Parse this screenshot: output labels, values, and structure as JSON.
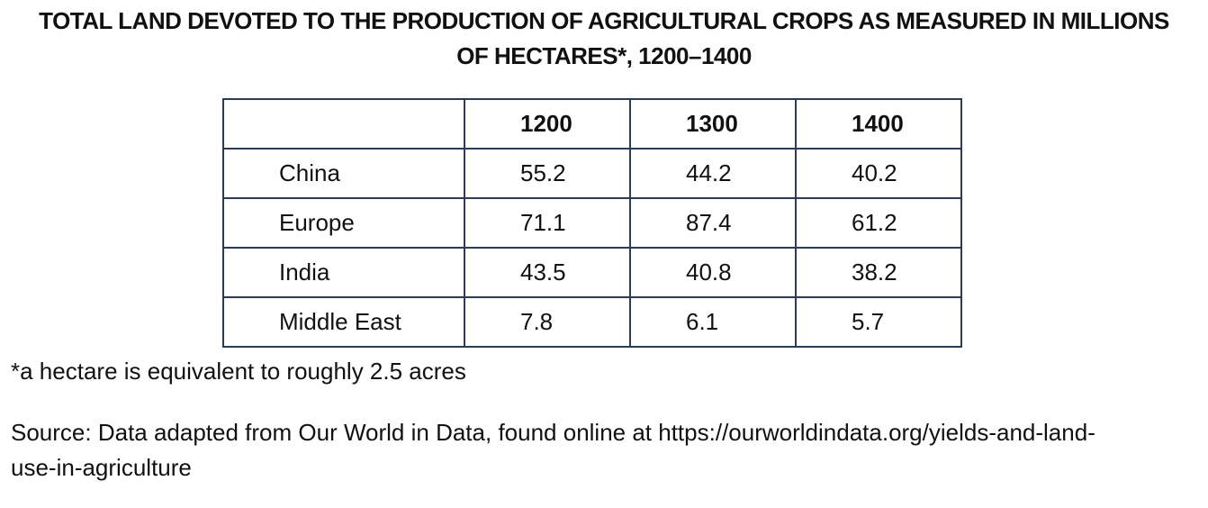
{
  "title": {
    "line1": "TOTAL LAND DEVOTED TO THE PRODUCTION OF AGRICULTURAL CROPS AS MEASURED IN MILLIONS",
    "line2": "OF HECTARES*, 1200–1400"
  },
  "table": {
    "corner": "",
    "years": [
      "1200",
      "1300",
      "1400"
    ],
    "rows": [
      {
        "region": "China",
        "values": [
          "55.2",
          "44.2",
          "40.2"
        ]
      },
      {
        "region": "Europe",
        "values": [
          "71.1",
          "87.4",
          "61.2"
        ]
      },
      {
        "region": "India",
        "values": [
          "43.5",
          "40.8",
          "38.2"
        ]
      },
      {
        "region": "Middle East",
        "values": [
          "7.8",
          "6.1",
          "5.7"
        ]
      }
    ]
  },
  "footnote": "*a hectare is equivalent to roughly 2.5 acres",
  "source": {
    "line1": "Source: Data adapted from Our World in Data, found online at https://ourworldindata.org/yields-and-land-",
    "line2": "use-in-agriculture"
  }
}
